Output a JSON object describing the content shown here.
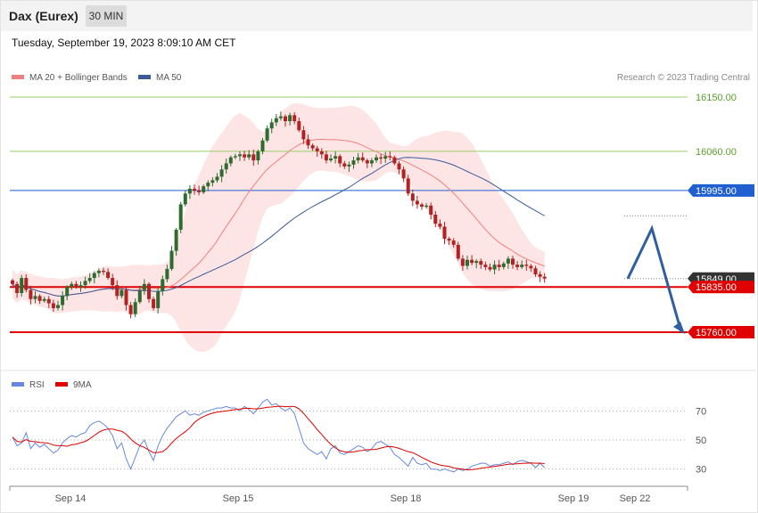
{
  "header": {
    "title": "Dax (Eurex)",
    "interval": "30 MIN",
    "datetime": "Tuesday, September 19, 2023 8:09:10 AM CET"
  },
  "legend": {
    "ma20_bb": "MA 20 + Bollinger Bands",
    "ma50": "MA 50",
    "credit": "Research © 2023 Trading Central",
    "rsi": "RSI",
    "rsi_ma": "9MA"
  },
  "colors": {
    "bb_fill": "#fde0e0",
    "ma20": "#f08080",
    "ma50": "#3a5a9a",
    "resistance": "#9acd6a",
    "pivot": "#1f5fd0",
    "support": "#e00000",
    "bull": "#2e6b2e",
    "bear": "#b22222",
    "rsi": "#6688dd",
    "rsi_ma": "#e00000",
    "arrow": "#2f5f9f"
  },
  "chart_data": [
    {
      "type": "candlestick",
      "ylim": [
        15700,
        16170
      ],
      "x_ticks": [
        "Sep 14",
        "Sep 15",
        "Sep 18",
        "Sep 19",
        "Sep 22"
      ],
      "levels": [
        {
          "value": 16150,
          "label": "16150.00",
          "kind": "resistance"
        },
        {
          "value": 16060,
          "label": "16060.00",
          "kind": "resistance"
        },
        {
          "value": 15995,
          "label": "15995.00",
          "kind": "pivot"
        },
        {
          "value": 15849,
          "label": "15849.00",
          "kind": "last"
        },
        {
          "value": 15835,
          "label": "15835.00",
          "kind": "support"
        },
        {
          "value": 15760,
          "label": "15760.00",
          "kind": "support"
        }
      ],
      "closes": [
        15840,
        15825,
        15850,
        15830,
        15815,
        15820,
        15812,
        15815,
        15808,
        15800,
        15805,
        15820,
        15835,
        15840,
        15835,
        15838,
        15845,
        15850,
        15858,
        15862,
        15860,
        15850,
        15838,
        15820,
        15830,
        15805,
        15790,
        15810,
        15830,
        15840,
        15815,
        15800,
        15828,
        15848,
        15865,
        15895,
        15930,
        15972,
        15990,
        15998,
        15995,
        15992,
        16002,
        16008,
        16012,
        16018,
        16030,
        16040,
        16050,
        16052,
        16055,
        16050,
        16055,
        16045,
        16060,
        16078,
        16098,
        16108,
        16115,
        16118,
        16110,
        16120,
        16110,
        16095,
        16080,
        16070,
        16065,
        16060,
        16055,
        16045,
        16048,
        16052,
        16040,
        16035,
        16038,
        16045,
        16050,
        16045,
        16040,
        16045,
        16050,
        16048,
        16052,
        16050,
        16040,
        16030,
        16015,
        15990,
        15978,
        15972,
        15968,
        15970,
        15955,
        15940,
        15935,
        15915,
        15912,
        15905,
        15882,
        15870,
        15880,
        15875,
        15878,
        15872,
        15868,
        15864,
        15872,
        15868,
        15874,
        15882,
        15872,
        15868,
        15872,
        15870,
        15866,
        15856,
        15852,
        15849
      ],
      "projection": [
        15849,
        15932,
        15760
      ]
    },
    {
      "type": "line",
      "name": "RSI",
      "ylim": [
        20,
        80
      ],
      "y_ticks": [
        70,
        50,
        30
      ],
      "series": [
        {
          "name": "RSI",
          "values": [
            52,
            46,
            48,
            55,
            44,
            48,
            45,
            47,
            44,
            41,
            43,
            48,
            51,
            53,
            52,
            54,
            55,
            60,
            62,
            63,
            61,
            58,
            53,
            44,
            48,
            37,
            30,
            38,
            46,
            50,
            42,
            36,
            46,
            53,
            58,
            62,
            66,
            68,
            70,
            67,
            68,
            67,
            69,
            70,
            71,
            72,
            72,
            73,
            72,
            72,
            70,
            73,
            71,
            68,
            72,
            76,
            78,
            74,
            75,
            72,
            70,
            72,
            68,
            58,
            48,
            44,
            42,
            40,
            42,
            37,
            44,
            46,
            41,
            40,
            42,
            44,
            46,
            45,
            42,
            44,
            48,
            49,
            47,
            45,
            40,
            38,
            35,
            32,
            38,
            34,
            33,
            34,
            30,
            30,
            29,
            30,
            29,
            28,
            30,
            29,
            30,
            32,
            33,
            34,
            34,
            32,
            33,
            33,
            34,
            35,
            33,
            35,
            36,
            35,
            34,
            31,
            34,
            31
          ]
        }
      ]
    }
  ]
}
